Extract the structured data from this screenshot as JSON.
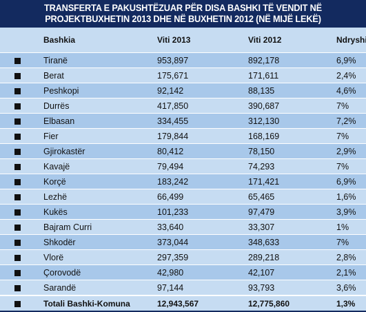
{
  "title": {
    "line1": "TRANSFERTA E PAKUSHTËZUAR PËR DISA BASHKI TË VENDIT NË",
    "line2": "PROJEKTBUXHETIN 2013 DHE NË BUXHETIN 2012 (NË MIJË LEKË)"
  },
  "headers": {
    "bashkia": "Bashkia",
    "viti2013": "Viti 2013",
    "viti2012": "Viti 2012",
    "ndryshimi": "Ndryshimi"
  },
  "rows": [
    {
      "name": "Tiranë",
      "v2013": "953,897",
      "v2012": "892,178",
      "diff": "6,9%"
    },
    {
      "name": "Berat",
      "v2013": "175,671",
      "v2012": "171,611",
      "diff": "2,4%"
    },
    {
      "name": "Peshkopi",
      "v2013": "92,142",
      "v2012": "88,135",
      "diff": "4,6%"
    },
    {
      "name": "Durrës",
      "v2013": "417,850",
      "v2012": "390,687",
      "diff": "7%"
    },
    {
      "name": "Elbasan",
      "v2013": "334,455",
      "v2012": "312,130",
      "diff": "7,2%"
    },
    {
      "name": "Fier",
      "v2013": "179,844",
      "v2012": "168,169",
      "diff": "7%"
    },
    {
      "name": "Gjirokastër",
      "v2013": "80,412",
      "v2012": "78,150",
      "diff": "2,9%"
    },
    {
      "name": "Kavajë",
      "v2013": "79,494",
      "v2012": "74,293",
      "diff": "7%"
    },
    {
      "name": "Korçë",
      "v2013": "183,242",
      "v2012": "171,421",
      "diff": "6,9%"
    },
    {
      "name": "Lezhë",
      "v2013": "66,499",
      "v2012": "65,465",
      "diff": "1,6%"
    },
    {
      "name": "Kukës",
      "v2013": "101,233",
      "v2012": "97,479",
      "diff": "3,9%"
    },
    {
      "name": "Bajram Curri",
      "v2013": "33,640",
      "v2012": "33,307",
      "diff": "1%"
    },
    {
      "name": "Shkodër",
      "v2013": "373,044",
      "v2012": "348,633",
      "diff": "7%"
    },
    {
      "name": "Vlorë",
      "v2013": "297,359",
      "v2012": "289,218",
      "diff": "2,8%"
    },
    {
      "name": "Çorovodë",
      "v2013": "42,980",
      "v2012": "42,107",
      "diff": "2,1%"
    },
    {
      "name": "Sarandë",
      "v2013": "97,144",
      "v2012": "93,793",
      "diff": "3,6%"
    }
  ],
  "total": {
    "name": "Totali Bashki-Komuna",
    "v2013": "12,943,567",
    "v2012": "12,775,860",
    "diff": "1,3%"
  }
}
